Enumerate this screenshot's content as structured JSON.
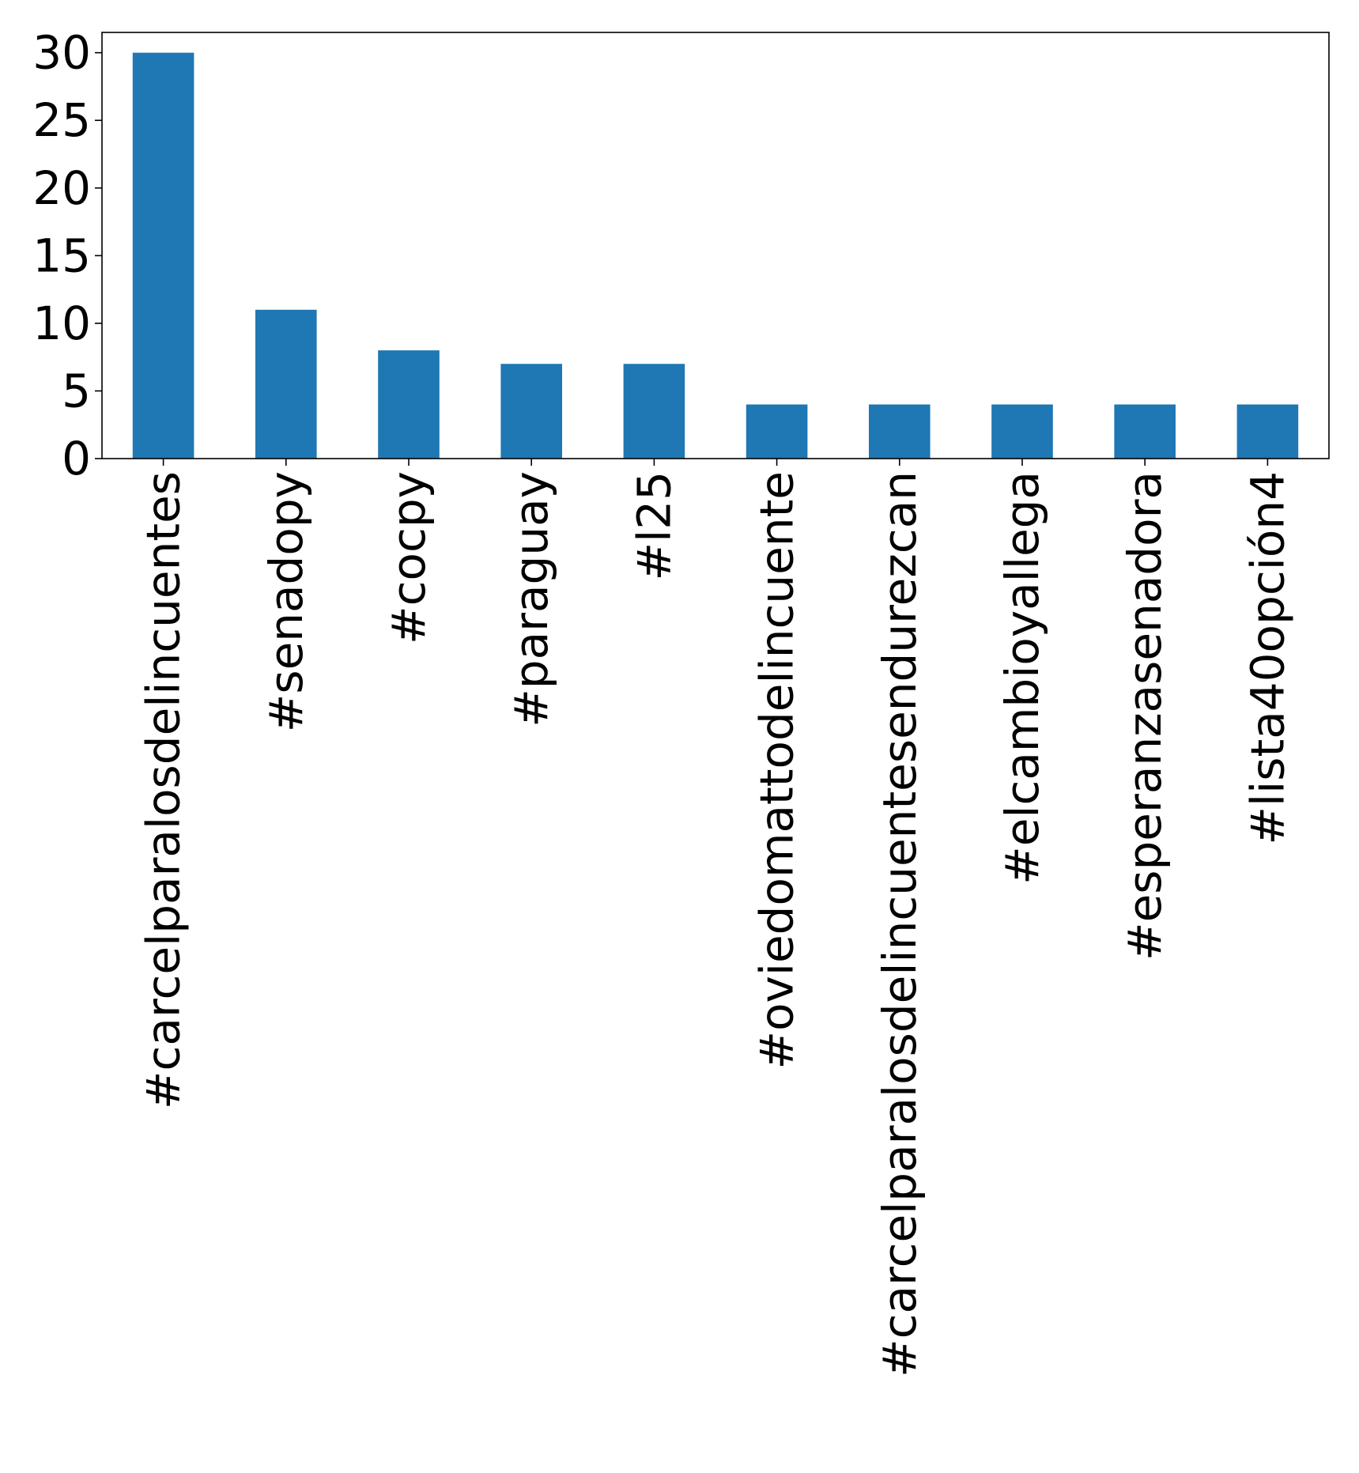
{
  "chart_data": {
    "type": "bar",
    "title": "",
    "xlabel": "",
    "ylabel": "",
    "categories": [
      "#carcelparalosdelincuentes",
      "#senadopy",
      "#cocpy",
      "#paraguay",
      "#l25",
      "#oviedomattodelincuente",
      "#carcelparalosdelincuentesendurezcan",
      "#elcambioyallega",
      "#esperanzasenadora",
      "#lista40opción4"
    ],
    "values": [
      30,
      11,
      8,
      7,
      7,
      4,
      4,
      4,
      4,
      4
    ],
    "ylim": [
      0,
      31.5
    ],
    "yticks": [
      0,
      5,
      10,
      15,
      20,
      25,
      30
    ],
    "ytick_labels": [
      "0",
      "5",
      "10",
      "15",
      "20",
      "25",
      "30"
    ],
    "bar_color": "#1f77b4",
    "grid": false,
    "legend": false
  }
}
